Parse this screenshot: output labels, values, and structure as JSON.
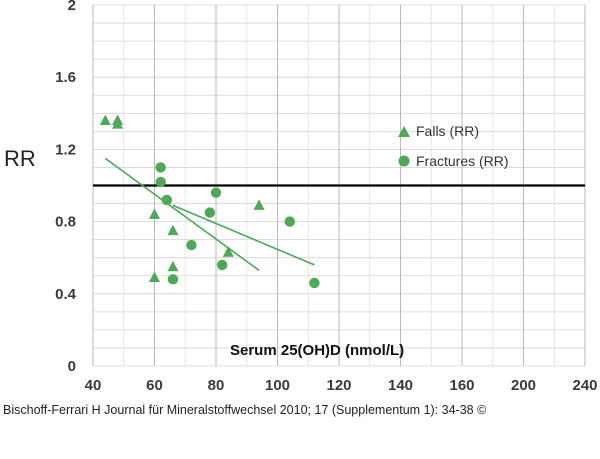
{
  "chart_data": {
    "type": "scatter",
    "ylabel": "RR",
    "xlabel": "Serum 25(OH)D (nmol/L)",
    "x_tick_labels": [
      "40",
      "60",
      "80",
      "100",
      "120",
      "140",
      "160",
      "200",
      "240"
    ],
    "y_tick_labels": [
      "0",
      "0.4",
      "0.8",
      "1.2",
      "1.6",
      "2"
    ],
    "ylim": [
      0,
      2
    ],
    "reference_line_y": 1.0,
    "grid": true,
    "legend_position": "top-right",
    "series": [
      {
        "name": "Falls (RR)",
        "marker": "triangle",
        "color": "#4ea858",
        "points": [
          {
            "x": 44,
            "y": 1.36
          },
          {
            "x": 48,
            "y": 1.36
          },
          {
            "x": 48,
            "y": 1.34
          },
          {
            "x": 60,
            "y": 0.84
          },
          {
            "x": 60,
            "y": 0.49
          },
          {
            "x": 66,
            "y": 0.75
          },
          {
            "x": 66,
            "y": 0.55
          },
          {
            "x": 84,
            "y": 0.63
          },
          {
            "x": 94,
            "y": 0.89
          }
        ],
        "trend": {
          "x": [
            44,
            94
          ],
          "y": [
            1.15,
            0.53
          ]
        }
      },
      {
        "name": "Fractures (RR)",
        "marker": "circle",
        "color": "#4ea858",
        "points": [
          {
            "x": 62,
            "y": 1.1
          },
          {
            "x": 62,
            "y": 1.02
          },
          {
            "x": 64,
            "y": 0.92
          },
          {
            "x": 72,
            "y": 0.67
          },
          {
            "x": 66,
            "y": 0.48
          },
          {
            "x": 78,
            "y": 0.85
          },
          {
            "x": 80,
            "y": 0.96
          },
          {
            "x": 82,
            "y": 0.56
          },
          {
            "x": 104,
            "y": 0.8
          },
          {
            "x": 112,
            "y": 0.46
          }
        ],
        "trend": {
          "x": [
            66,
            112
          ],
          "y": [
            0.89,
            0.56
          ]
        }
      }
    ]
  },
  "caption": "Bischoff-Ferrari H Journal für Mineralstoffwechsel 2010; 17 (Supplementum 1): 34-38 ©"
}
